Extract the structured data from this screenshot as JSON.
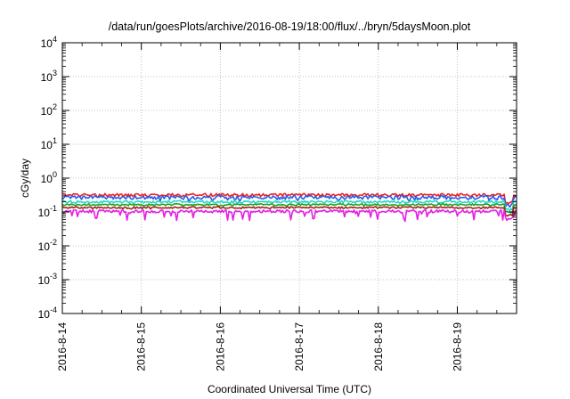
{
  "chart_data": {
    "type": "line",
    "title": "/data/run/goesPlots/archive/2016-08-19/18:00/flux/../bryn/5daysMoon.plot",
    "xlabel": "Coordinated Universal Time (UTC)",
    "ylabel": "cGy/day",
    "yscale": "log",
    "ylim": [
      0.0001,
      10000
    ],
    "y_ticks": [
      {
        "value": 0.0001,
        "base": "10",
        "exp": "-4"
      },
      {
        "value": 0.001,
        "base": "10",
        "exp": "-3"
      },
      {
        "value": 0.01,
        "base": "10",
        "exp": "-2"
      },
      {
        "value": 0.1,
        "base": "10",
        "exp": "-1"
      },
      {
        "value": 1,
        "base": "10",
        "exp": "0"
      },
      {
        "value": 10,
        "base": "10",
        "exp": "1"
      },
      {
        "value": 100,
        "base": "10",
        "exp": "2"
      },
      {
        "value": 1000,
        "base": "10",
        "exp": "3"
      },
      {
        "value": 10000,
        "base": "10",
        "exp": "4"
      }
    ],
    "xlim": [
      "2016-08-14",
      "2016-08-19T18:00"
    ],
    "x_ticks": [
      {
        "value": "2016-08-14",
        "label": "2016-8-14"
      },
      {
        "value": "2016-08-15",
        "label": "2016-8-15"
      },
      {
        "value": "2016-08-16",
        "label": "2016-8-16"
      },
      {
        "value": "2016-08-17",
        "label": "2016-8-17"
      },
      {
        "value": "2016-08-18",
        "label": "2016-8-18"
      },
      {
        "value": "2016-08-19",
        "label": "2016-8-19"
      }
    ],
    "grid": true,
    "legend": "none",
    "series": [
      {
        "color": "#ee2222",
        "level": 0.32,
        "noise": 0.1,
        "dip": 0.05
      },
      {
        "color": "#2a5ce8",
        "level": 0.27,
        "noise": 0.14,
        "dip": 0.1
      },
      {
        "color": "#20d8c8",
        "level": 0.2,
        "noise": 0.08,
        "dip": 0.05
      },
      {
        "color": "#1fa01f",
        "level": 0.165,
        "noise": 0.06,
        "dip": 0.04
      },
      {
        "color": "#a0201a",
        "level": 0.135,
        "noise": 0.06,
        "dip": 0.04
      },
      {
        "color": "#e61ee6",
        "level": 0.105,
        "noise": 0.1,
        "dip": 0.32
      }
    ]
  }
}
